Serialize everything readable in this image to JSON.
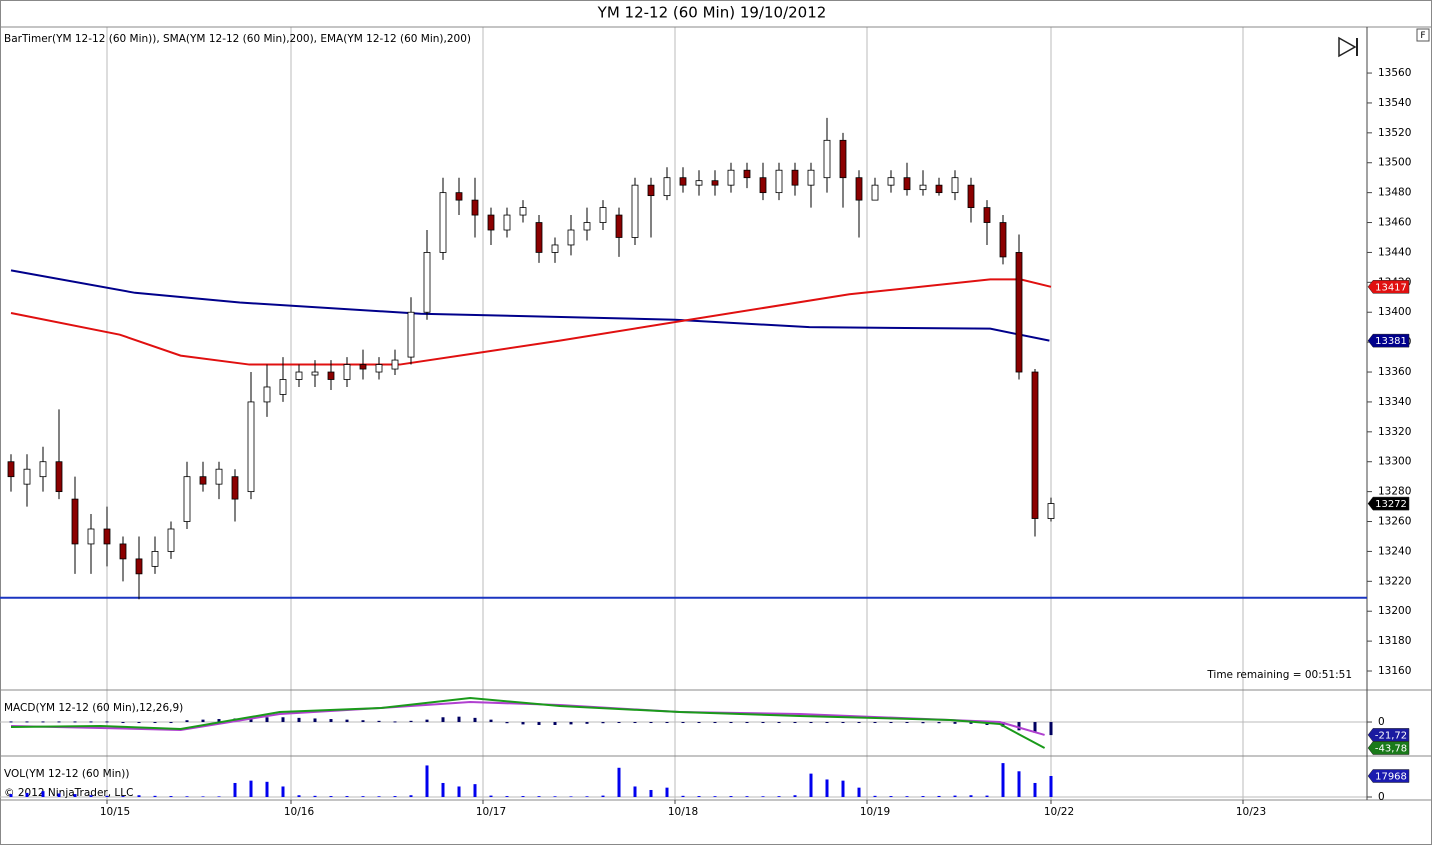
{
  "title": "YM 12-12 (60 Min)  19/10/2012",
  "corner_label": "F",
  "chart_data": [
    {
      "type": "candlestick",
      "legend_text": "BarTimer(YM 12-12 (60 Min)), SMA(YM 12-12 (60 Min),200), EMA(YM 12-12 (60 Min),200)",
      "annotation": "Time remaining = 00:51:51",
      "xlim": [
        -0.6875,
        84.75
      ],
      "xticks": [
        {
          "value": 6,
          "label": "10/15"
        },
        {
          "value": 17.5,
          "label": "10/16"
        },
        {
          "value": 29.5,
          "label": "10/17"
        },
        {
          "value": 41.5,
          "label": "10/18"
        },
        {
          "value": 53.5,
          "label": "10/19"
        },
        {
          "value": 65,
          "label": "10/22"
        },
        {
          "value": 77,
          "label": "10/23"
        }
      ],
      "ylim": [
        13147.3,
        13590.8
      ],
      "yticks": [
        13160,
        13180,
        13200,
        13220,
        13240,
        13260,
        13280,
        13300,
        13320,
        13340,
        13360,
        13380,
        13400,
        13420,
        13440,
        13460,
        13480,
        13500,
        13520,
        13540,
        13560
      ],
      "grid": true,
      "up_color": "#ffffff",
      "down_color": "#8b0000",
      "open": [
        13300,
        13285,
        13290,
        13300,
        13275,
        13245,
        13255,
        13245,
        13235,
        13230,
        13240,
        13260,
        13290,
        13285,
        13290,
        13280,
        13340,
        13345,
        13355,
        13358,
        13360,
        13355,
        13365,
        13360,
        13362,
        13370,
        13400,
        13440,
        13480,
        13475,
        13465,
        13455,
        13465,
        13460,
        13440,
        13445,
        13455,
        13460,
        13465,
        13450,
        13485,
        13478,
        13490,
        13485,
        13488,
        13485,
        13495,
        13490,
        13480,
        13495,
        13485,
        13490,
        13515,
        13490,
        13475,
        13485,
        13490,
        13482,
        13485,
        13480,
        13485,
        13470,
        13460,
        13440,
        13360,
        13262
      ],
      "high": [
        13305,
        13305,
        13310,
        13335,
        13290,
        13265,
        13270,
        13250,
        13250,
        13250,
        13260,
        13300,
        13300,
        13300,
        13295,
        13360,
        13365,
        13370,
        13365,
        13368,
        13368,
        13370,
        13375,
        13370,
        13375,
        13410,
        13455,
        13490,
        13490,
        13490,
        13470,
        13470,
        13475,
        13465,
        13450,
        13465,
        13470,
        13475,
        13470,
        13490,
        13490,
        13497,
        13497,
        13495,
        13495,
        13500,
        13500,
        13500,
        13500,
        13500,
        13500,
        13530,
        13520,
        13495,
        13490,
        13495,
        13500,
        13495,
        13490,
        13495,
        13490,
        13475,
        13465,
        13452,
        13362,
        13276
      ],
      "low": [
        13280,
        13270,
        13280,
        13275,
        13225,
        13225,
        13230,
        13220,
        13208,
        13225,
        13235,
        13255,
        13280,
        13275,
        13260,
        13275,
        13330,
        13340,
        13350,
        13350,
        13348,
        13350,
        13355,
        13355,
        13358,
        13365,
        13395,
        13435,
        13465,
        13450,
        13445,
        13450,
        13460,
        13433,
        13433,
        13438,
        13448,
        13455,
        13437,
        13445,
        13450,
        13475,
        13480,
        13478,
        13478,
        13480,
        13483,
        13475,
        13475,
        13478,
        13470,
        13480,
        13470,
        13450,
        13475,
        13480,
        13478,
        13478,
        13478,
        13475,
        13460,
        13445,
        13432,
        13355,
        13250,
        13260
      ],
      "close": [
        13290,
        13295,
        13300,
        13280,
        13245,
        13255,
        13245,
        13235,
        13225,
        13240,
        13255,
        13290,
        13285,
        13295,
        13275,
        13340,
        13350,
        13355,
        13360,
        13360,
        13355,
        13365,
        13362,
        13365,
        13368,
        13400,
        13440,
        13480,
        13475,
        13465,
        13455,
        13465,
        13470,
        13440,
        13445,
        13455,
        13460,
        13470,
        13450,
        13485,
        13478,
        13490,
        13485,
        13488,
        13485,
        13495,
        13490,
        13480,
        13495,
        13485,
        13495,
        13515,
        13490,
        13475,
        13485,
        13490,
        13482,
        13485,
        13480,
        13490,
        13470,
        13460,
        13437,
        13360,
        13262,
        13272
      ],
      "lines": [
        {
          "color": "#00008b",
          "label_color": "#00008b",
          "x": [
            0,
            7.75,
            14.3,
            25.6,
            41.5,
            49.9,
            61.2,
            64.9
          ],
          "values": [
            13428,
            13413,
            13406.5,
            13399,
            13395,
            13390,
            13389,
            13381
          ]
        },
        {
          "color": "#e01010",
          "label_color": "#e01010",
          "x": [
            0,
            6.8,
            10.6,
            14.9,
            24.3,
            29.3,
            34.3,
            42.4,
            52.4,
            61.2,
            63.1,
            65.0
          ],
          "values": [
            13399.5,
            13385,
            13371,
            13365,
            13365,
            13373,
            13381,
            13395,
            13412,
            13422,
            13422,
            13417
          ]
        }
      ],
      "hline": {
        "value": 13209,
        "color": "#1a35c0"
      }
    },
    {
      "type": "macd",
      "title": "MACD(YM 12-12 (60 Min),12,26,9)",
      "ylim": [
        -57.2,
        53.9
      ],
      "yticks": [
        0
      ],
      "histogram_color": "#000060",
      "histogram": [
        1,
        1,
        1,
        1,
        1,
        1,
        1,
        0,
        0,
        0,
        0,
        3,
        4,
        5,
        6,
        7,
        8,
        8,
        7,
        6,
        5,
        4,
        3,
        2,
        1,
        2,
        4,
        8,
        9,
        7,
        4,
        -2,
        -4,
        -5,
        -5,
        -4,
        -3,
        -2,
        -1,
        0,
        0,
        0,
        0,
        0,
        0,
        0,
        0,
        0,
        0,
        0,
        0,
        -1,
        -1,
        -1,
        -1,
        -1,
        -1,
        -2,
        -2,
        -3,
        -3,
        -5,
        -8,
        -14,
        -18,
        -22
      ],
      "series": [
        {
          "color": "#b040d0",
          "label_color": "#1a1aa0",
          "x": [
            0,
            5.6,
            10.6,
            16.8,
            23.1,
            28.7,
            34.3,
            41.8,
            49.3,
            58.7,
            61.8,
            64.6
          ],
          "values": [
            -6.7,
            -10,
            -13.5,
            13.5,
            23.6,
            33.7,
            28.6,
            16.8,
            13.5,
            3.4,
            0,
            -21.72
          ],
          "value_labels": [
            null,
            null,
            null,
            null,
            null,
            null,
            null,
            null,
            null,
            null,
            null,
            "-21,72"
          ]
        },
        {
          "color": "#1a9a1a",
          "label_color": "#1a7a1a",
          "x": [
            0,
            5.6,
            10.6,
            16.8,
            23.1,
            28.7,
            34.3,
            41.8,
            49.3,
            58.7,
            61.8,
            64.6
          ],
          "values": [
            -8.4,
            -6.7,
            -11.8,
            16.8,
            23.6,
            40.4,
            26.9,
            16.8,
            10.1,
            3.4,
            -3.4,
            -43.78
          ],
          "value_labels": [
            null,
            null,
            null,
            null,
            null,
            null,
            null,
            null,
            null,
            null,
            null,
            "-43,78"
          ]
        }
      ]
    },
    {
      "type": "volume",
      "title": "VOL(YM 12-12 (60 Min))",
      "annotation": "© 2012 NinjaTrader, LLC",
      "ylim": [
        -2566,
        35080
      ],
      "yticks": [
        0
      ],
      "color": "#0000ee",
      "label_color": "#1a1ab0",
      "values": [
        2500,
        3500,
        5000,
        3000,
        2500,
        1500,
        1000,
        800,
        1500,
        1000,
        800,
        600,
        500,
        500,
        12000,
        14000,
        13000,
        9000,
        1500,
        1000,
        800,
        800,
        700,
        600,
        800,
        1500,
        27000,
        12000,
        9000,
        11000,
        1200,
        800,
        800,
        700,
        600,
        500,
        600,
        1200,
        25000,
        9000,
        6000,
        8000,
        1000,
        800,
        700,
        800,
        700,
        600,
        700,
        1500,
        20000,
        15000,
        14000,
        8000,
        1000,
        800,
        700,
        800,
        900,
        1200,
        1500,
        1200,
        29000,
        22000,
        12000,
        17968
      ]
    }
  ]
}
